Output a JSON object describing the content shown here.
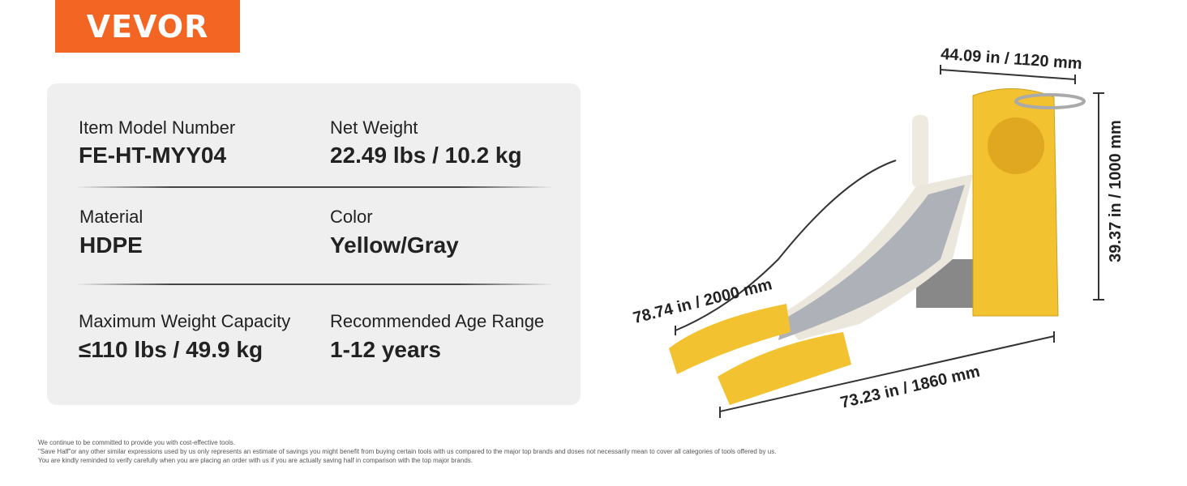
{
  "logo": "VEVOR",
  "specs": [
    {
      "label": "Item Model Number",
      "value": "FE-HT-MYY04"
    },
    {
      "label": "Net Weight",
      "value": "22.49 lbs / 10.2 kg"
    },
    {
      "label": "Material",
      "value": "HDPE"
    },
    {
      "label": "Color",
      "value": "Yellow/Gray"
    },
    {
      "label": "Maximum Weight Capacity",
      "value": "≤110 lbs / 49.9 kg"
    },
    {
      "label": "Recommended Age Range",
      "value": "1-12 years"
    }
  ],
  "dimensions": {
    "width": "44.09 in / 1120 mm",
    "height": "39.37 in / 1000 mm",
    "slide_length": "78.74 in / 2000 mm",
    "length": "73.23 in / 1860 mm"
  },
  "footnote": [
    "We continue to be committed to provide you with cost-effective tools.",
    "\"Save Half\"or any other similar expressions used by us only represents an estimate of savings you might benefit from buying certain tools with us compared to the major top brands and doses not necessarily mean to cover all categories of tools offered by us.",
    "You are kindly reminded to verify carefully when you are placing an order with us if you are actually saving half in comparison with the top major brands."
  ]
}
